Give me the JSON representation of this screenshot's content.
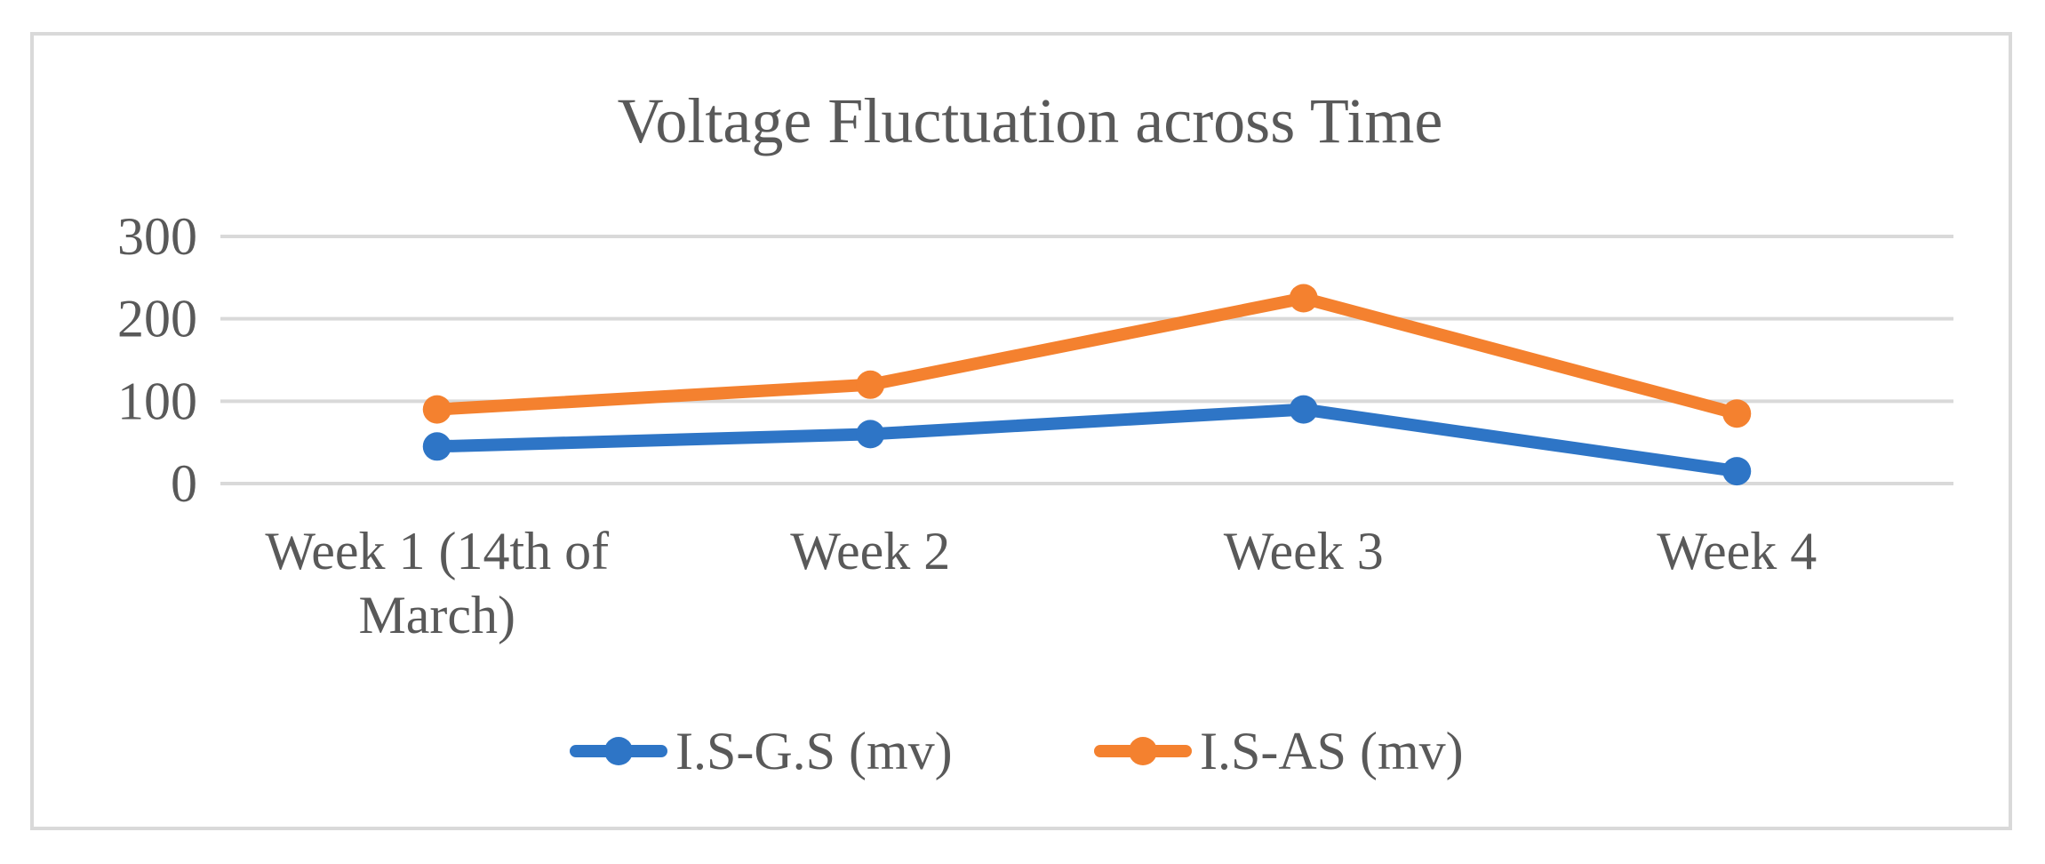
{
  "chart_data": {
    "type": "line",
    "title": "Voltage Fluctuation across Time",
    "categories": [
      "Week 1 (14th of March)",
      "Week 2",
      "Week 3",
      "Week 4"
    ],
    "category_lines": [
      [
        "Week 1 (14th of",
        "March)"
      ],
      [
        "Week 2"
      ],
      [
        "Week 3"
      ],
      [
        "Week 4"
      ]
    ],
    "ylim": [
      0,
      300
    ],
    "yticks": [
      0,
      100,
      200,
      300
    ],
    "ytick_labels": [
      "0",
      "100",
      "200",
      "300"
    ],
    "grid": true,
    "legend_position": "bottom",
    "xlabel": "",
    "ylabel": "",
    "series": [
      {
        "name": "I.S-G.S (mv)",
        "color": "#2e75c6",
        "values": [
          45,
          60,
          90,
          15
        ]
      },
      {
        "name": "I.S-AS (mv)",
        "color": "#f4812f",
        "values": [
          90,
          120,
          225,
          85
        ]
      }
    ]
  }
}
